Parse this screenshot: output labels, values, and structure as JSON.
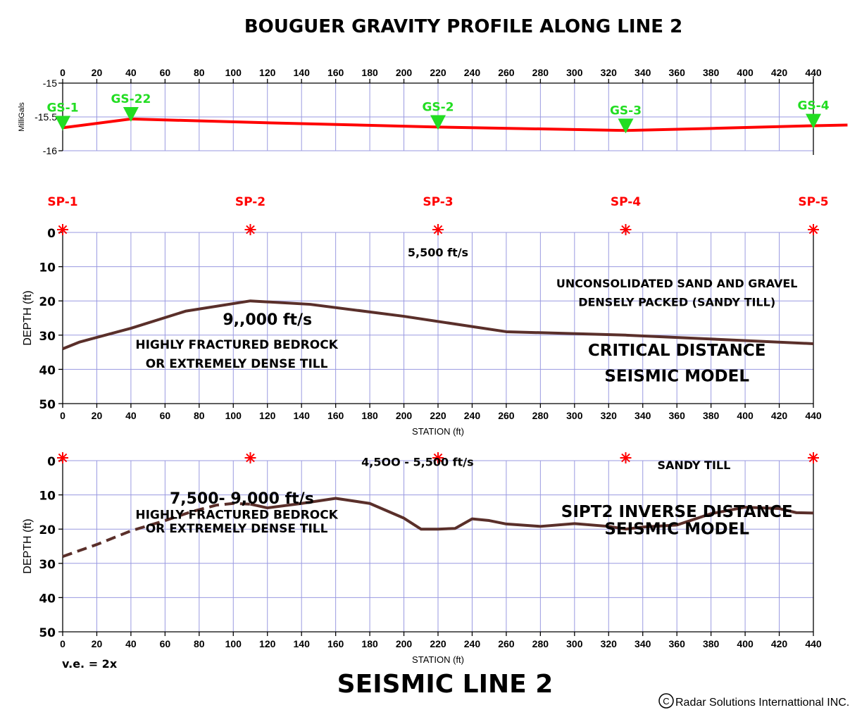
{
  "page": {
    "title": "BOUGUER GRAVITY PROFILE ALONG  LINE 2",
    "footer_title": "SEISMIC LINE 2",
    "ve_note": "v.e. = 2x",
    "copyright": "Radar Solutions Internattional INC.",
    "copyright_symbol": "C"
  },
  "chart_data": [
    {
      "id": "gravity",
      "type": "line",
      "title": "BOUGUER GRAVITY PROFILE ALONG  LINE 2",
      "ylabel": "MilliGals",
      "xlim": [
        0,
        440
      ],
      "ylim": [
        -16,
        -15
      ],
      "x_ticks": [
        0,
        20,
        40,
        60,
        80,
        100,
        120,
        140,
        160,
        180,
        200,
        220,
        240,
        260,
        280,
        300,
        320,
        340,
        360,
        380,
        400,
        420,
        440
      ],
      "y_ticks": [
        {
          "value": -15,
          "label": "-15"
        },
        {
          "value": -15.5,
          "label": "-15.5"
        },
        {
          "value": -16,
          "label": "-16"
        }
      ],
      "line_color": "#ff0000",
      "series": [
        {
          "x": [
            0,
            40,
            110,
            220,
            330,
            380,
            440,
            460
          ],
          "y": [
            -15.66,
            -15.53,
            -15.58,
            -15.65,
            -15.7,
            -15.67,
            -15.63,
            -15.62
          ]
        }
      ],
      "stations": [
        {
          "label": "GS-1",
          "x": 0,
          "y": -15.63
        },
        {
          "label": "GS-22",
          "x": 40,
          "y": -15.5
        },
        {
          "label": "GS-2",
          "x": 220,
          "y": -15.62
        },
        {
          "label": "GS-3",
          "x": 330,
          "y": -15.67
        },
        {
          "label": "GS-4",
          "x": 440,
          "y": -15.6
        }
      ],
      "marker_color": "#22dd22"
    },
    {
      "id": "critical",
      "type": "line",
      "xlabel": "STATION (ft)",
      "ylabel": "DEPTH (ft)",
      "xlim": [
        0,
        440
      ],
      "ylim": [
        50,
        0
      ],
      "x_ticks": [
        0,
        20,
        40,
        60,
        80,
        100,
        120,
        140,
        160,
        180,
        200,
        220,
        240,
        260,
        280,
        300,
        320,
        340,
        360,
        380,
        400,
        420,
        440
      ],
      "y_ticks": [
        0,
        10,
        20,
        30,
        40,
        50
      ],
      "line_color": "#5a2f2a",
      "shotpoints": [
        {
          "label": "SP-1",
          "x": 0
        },
        {
          "label": "SP-2",
          "x": 110
        },
        {
          "label": "SP-3",
          "x": 220
        },
        {
          "label": "SP-4",
          "x": 330
        },
        {
          "label": "SP-5",
          "x": 440
        }
      ],
      "series": [
        {
          "x": [
            0,
            10,
            40,
            72,
            110,
            145,
            200,
            260,
            330,
            440
          ],
          "y": [
            34,
            32,
            28,
            23,
            20,
            21,
            24.5,
            29,
            30,
            32.5
          ]
        }
      ],
      "annotations": [
        {
          "text": "5,500 ft/s",
          "x": 220,
          "y": 7,
          "size": "m"
        },
        {
          "text": "UNCONSOLIDATED SAND AND GRAVEL",
          "x": 360,
          "y": 16,
          "size": "m"
        },
        {
          "text": "DENSELY PACKED (SANDY TILL)",
          "x": 360,
          "y": 21.5,
          "size": "m"
        },
        {
          "text": "9,,000 ft/s",
          "x": 120,
          "y": 27,
          "size": "l"
        },
        {
          "text": "HIGHLY FRACTURED BEDROCK",
          "x": 102,
          "y": 34,
          "size": "ml"
        },
        {
          "text": "OR EXTREMELY DENSE TILL",
          "x": 102,
          "y": 39.5,
          "size": "ml"
        },
        {
          "text": "CRITICAL  DISTANCE",
          "x": 360,
          "y": 36,
          "size": "xl"
        },
        {
          "text": "SEISMIC MODEL",
          "x": 360,
          "y": 43.5,
          "size": "xl"
        }
      ]
    },
    {
      "id": "inverse",
      "type": "line",
      "xlabel": "STATION (ft)",
      "ylabel": "DEPTH (ft)",
      "xlim": [
        0,
        440
      ],
      "ylim": [
        50,
        0
      ],
      "x_ticks": [
        0,
        20,
        40,
        60,
        80,
        100,
        120,
        140,
        160,
        180,
        200,
        220,
        240,
        260,
        280,
        300,
        320,
        340,
        360,
        380,
        400,
        420,
        440
      ],
      "y_ticks": [
        0,
        10,
        20,
        30,
        40,
        50
      ],
      "line_color": "#5a2f2a",
      "shotpoints_x": [
        0,
        110,
        220,
        330,
        440
      ],
      "series": [
        {
          "style": "dashed",
          "x": [
            0,
            20,
            40,
            60,
            75,
            90,
            100,
            110
          ],
          "y": [
            28,
            24.5,
            20.5,
            17.5,
            15,
            13,
            12.5,
            12.7
          ]
        },
        {
          "style": "solid",
          "x": [
            110,
            120,
            140,
            160,
            180,
            200,
            210,
            220,
            230,
            240,
            250,
            260,
            280,
            300,
            320,
            330,
            340,
            360,
            380,
            400,
            420,
            430,
            440
          ],
          "y": [
            12.7,
            13.8,
            12.5,
            11,
            12.5,
            16.8,
            20,
            20,
            19.8,
            17,
            17.5,
            18.5,
            19.2,
            18.4,
            19.2,
            20,
            19.4,
            18.8,
            15.5,
            13.6,
            14,
            15.2,
            15.3
          ]
        }
      ],
      "annotations": [
        {
          "text": "4,5OO - 5,500 ft/s",
          "x": 208,
          "y": 1.5,
          "size": "m"
        },
        {
          "text": "SANDY TILL",
          "x": 370,
          "y": 2.5,
          "size": "m"
        },
        {
          "text": "7,500- 9,000 ft/s",
          "x": 105,
          "y": 12.5,
          "size": "l"
        },
        {
          "text": "HIGHLY FRACTURED BEDROCK",
          "x": 102,
          "y": 17,
          "size": "ml"
        },
        {
          "text": "OR EXTREMELY DENSE TILL",
          "x": 102,
          "y": 21,
          "size": "ml"
        },
        {
          "text": "SIPT2 INVERSE DISTANCE",
          "x": 360,
          "y": 16.5,
          "size": "xl"
        },
        {
          "text": "SEISMIC MODEL",
          "x": 360,
          "y": 21.5,
          "size": "xl"
        }
      ]
    }
  ]
}
